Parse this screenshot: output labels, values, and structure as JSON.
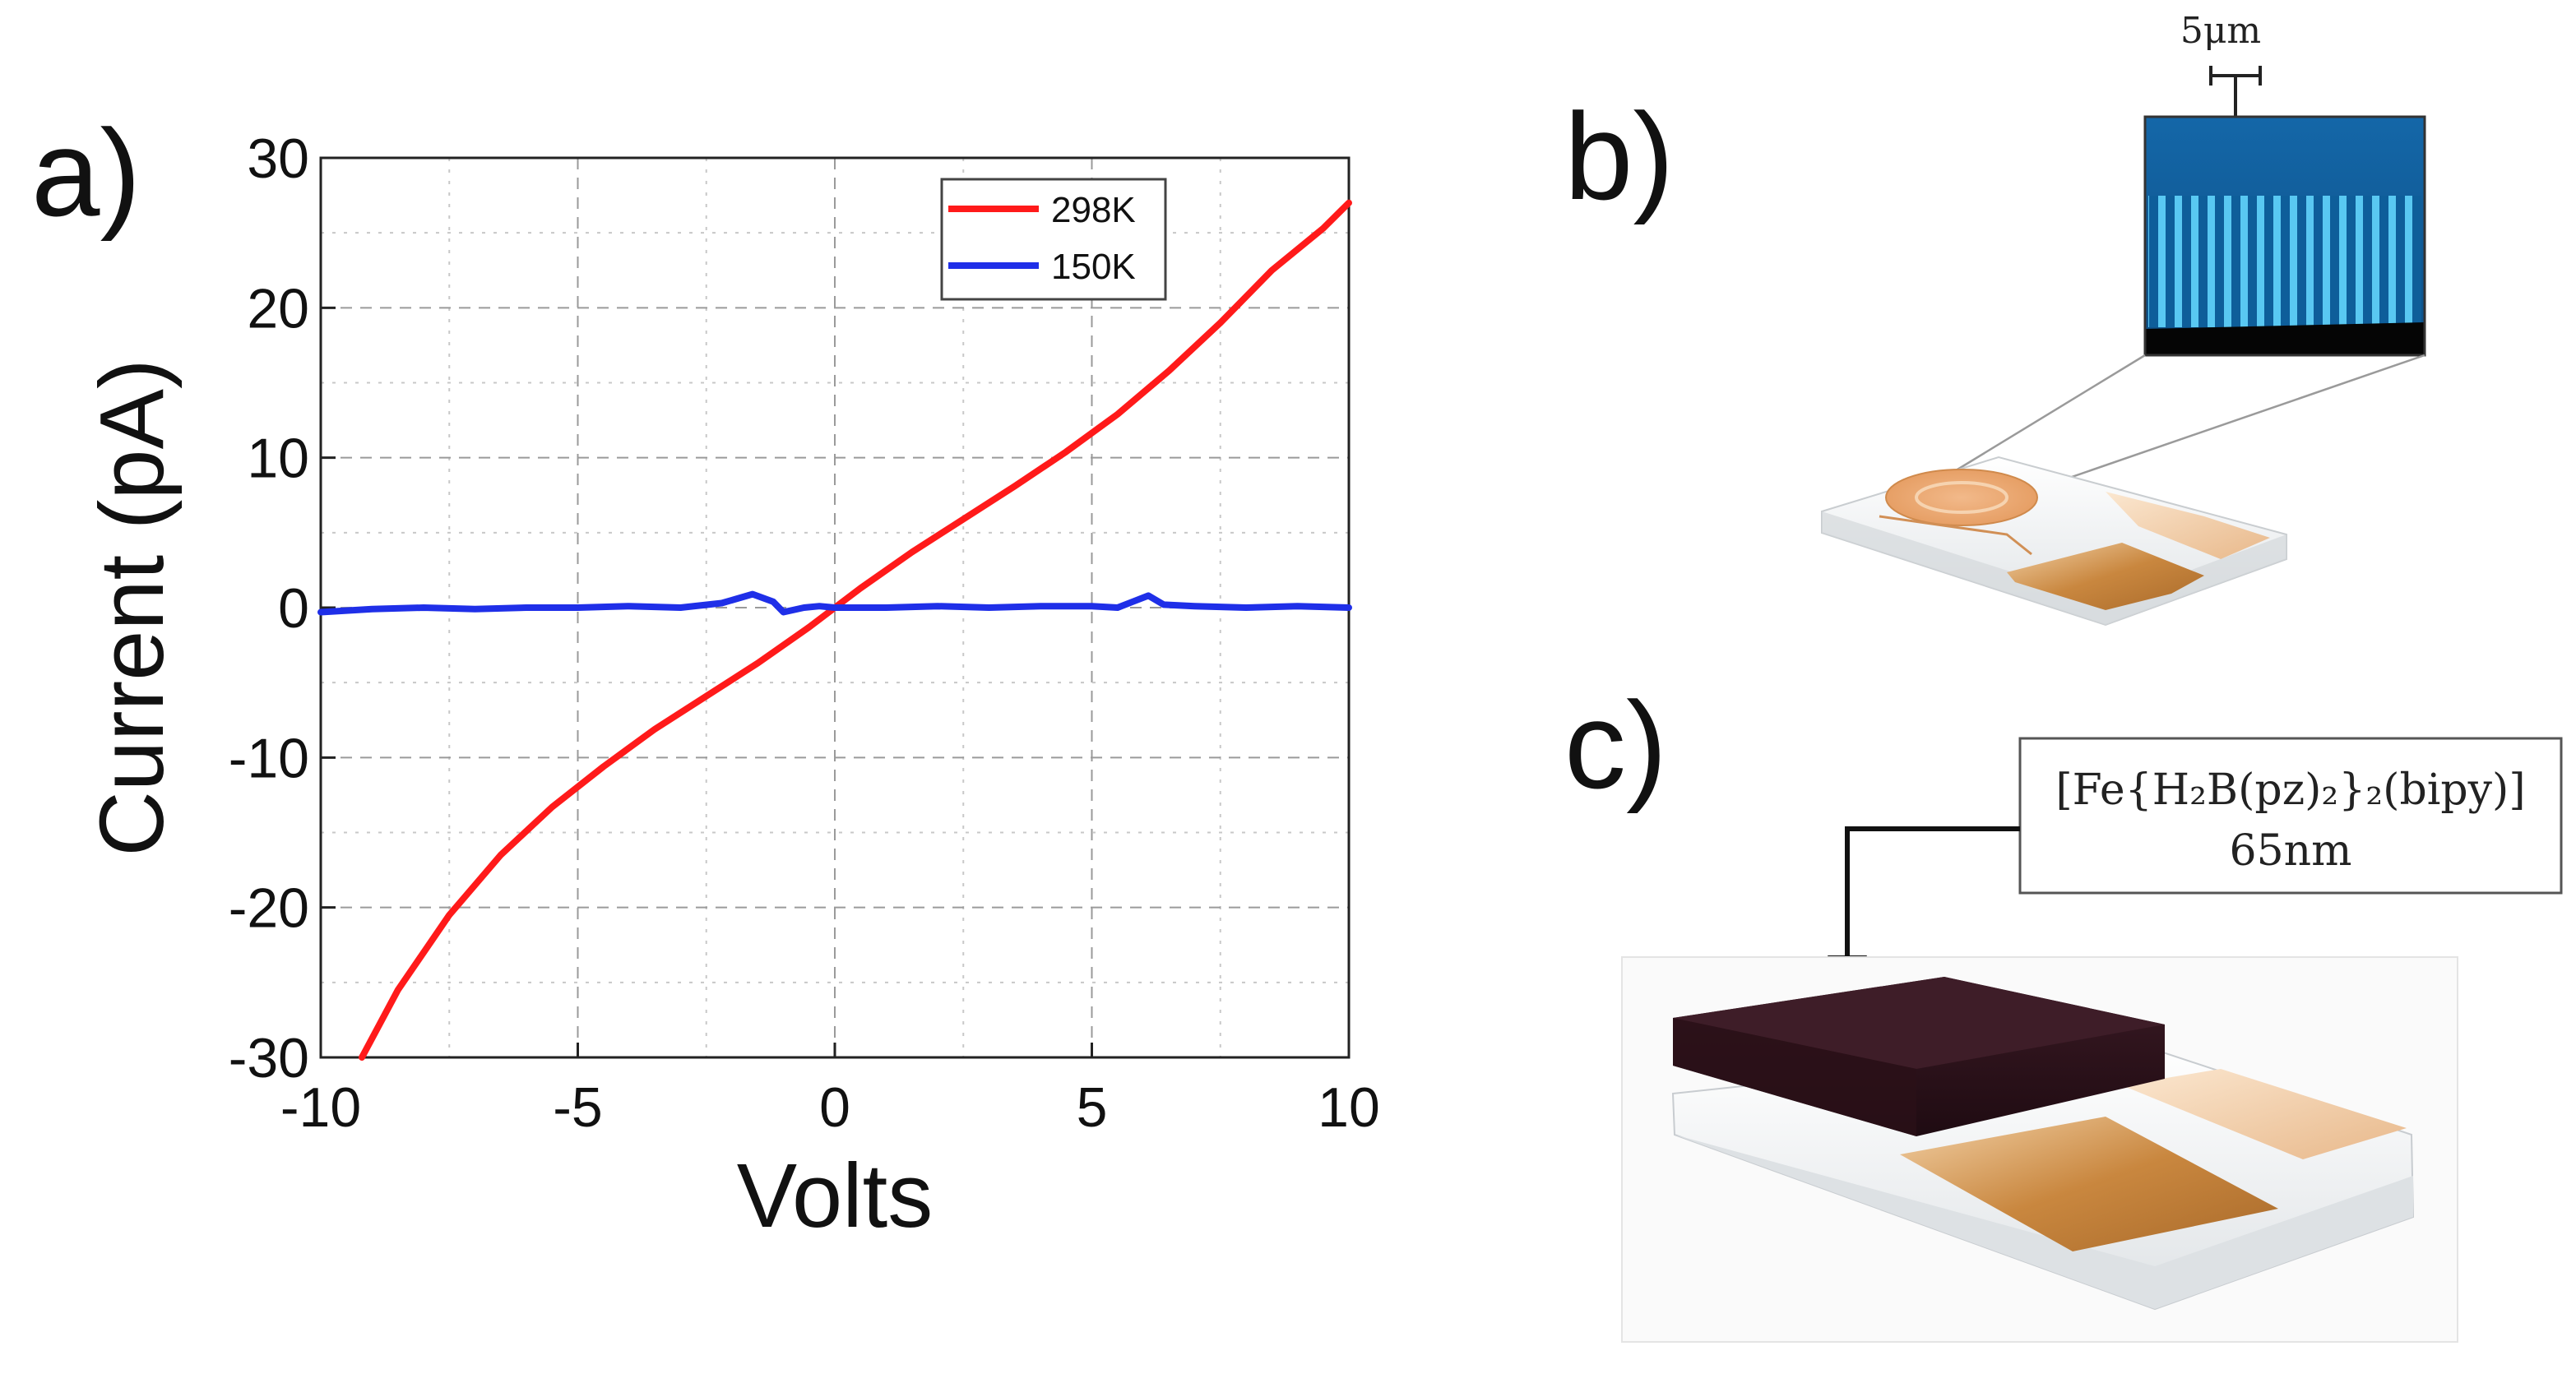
{
  "panels": {
    "a_label": "a)",
    "b_label": "b)",
    "c_label": "c)"
  },
  "chart_data": {
    "type": "line",
    "title": "",
    "xlabel": "Volts",
    "ylabel": "Current (pA)",
    "xlim": [
      -10,
      10
    ],
    "ylim": [
      -30,
      30
    ],
    "xticks": [
      -10,
      -5,
      0,
      5,
      10
    ],
    "yticks": [
      -30,
      -20,
      -10,
      0,
      10,
      20,
      30
    ],
    "grid": true,
    "legend_position": "top-right",
    "series": [
      {
        "name": "298K",
        "color": "#ff1a1a",
        "x": [
          -9.2,
          -8.5,
          -7.5,
          -6.5,
          -5.5,
          -4.5,
          -3.5,
          -2.5,
          -1.5,
          -0.5,
          0,
          0.5,
          1.5,
          2.5,
          3.5,
          4.5,
          5.5,
          6.5,
          7.5,
          8.5,
          9.5,
          10
        ],
        "y": [
          -30,
          -25.5,
          -20.5,
          -16.5,
          -13.3,
          -10.6,
          -8.1,
          -5.9,
          -3.7,
          -1.3,
          0,
          1.3,
          3.7,
          5.9,
          8.1,
          10.4,
          12.9,
          15.8,
          19.0,
          22.5,
          25.3,
          27
        ]
      },
      {
        "name": "150K",
        "color": "#1f2fe8",
        "x": [
          -10,
          -9.5,
          -9,
          -8,
          -7,
          -6,
          -5,
          -4,
          -3,
          -2.2,
          -1.6,
          -1.2,
          -1.0,
          -0.6,
          -0.3,
          0,
          0.5,
          1,
          2,
          3,
          4,
          5,
          5.5,
          5.8,
          6.1,
          6.4,
          7,
          8,
          9,
          10
        ],
        "y": [
          -0.3,
          -0.2,
          -0.1,
          0.0,
          -0.1,
          0.0,
          0.0,
          0.1,
          0.0,
          0.3,
          0.9,
          0.4,
          -0.3,
          0.0,
          0.1,
          0.0,
          0.0,
          0.0,
          0.1,
          0.0,
          0.1,
          0.1,
          0.0,
          0.4,
          0.8,
          0.2,
          0.1,
          0.0,
          0.1,
          0.0
        ]
      }
    ]
  },
  "panel_b": {
    "scale_label": "5μm"
  },
  "panel_c": {
    "compound_label": "[Fe{H₂B(pz)₂}₂(bipy)]",
    "thickness_label": "65nm"
  }
}
